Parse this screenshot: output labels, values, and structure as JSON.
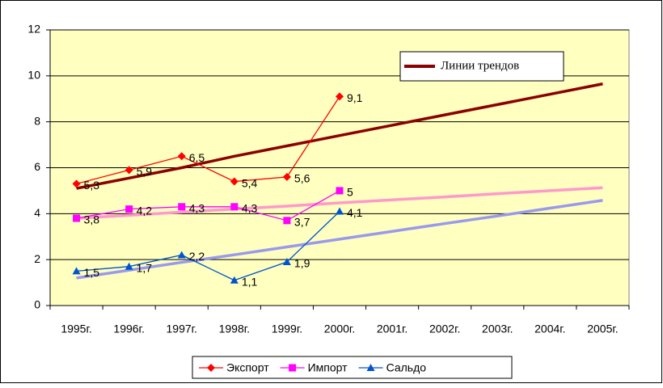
{
  "chart_data": {
    "type": "line",
    "categories": [
      "1995г.",
      "1996г.",
      "1997г.",
      "1998г.",
      "1999г.",
      "2000г.",
      "2001г.",
      "2002г.",
      "2003г.",
      "2004г.",
      "2005г."
    ],
    "series": [
      {
        "name": "Экспорт",
        "color": "#ff0000",
        "marker": "diamond",
        "values": [
          5.3,
          5.9,
          6.5,
          5.4,
          5.6,
          9.1,
          null,
          null,
          null,
          null,
          null
        ],
        "value_labels": [
          "5,3",
          "5,9",
          "6,5",
          "5,4",
          "5,6",
          "9,1",
          null,
          null,
          null,
          null,
          null
        ]
      },
      {
        "name": "Импорт",
        "color": "#ff00ff",
        "marker": "square",
        "values": [
          3.8,
          4.2,
          4.3,
          4.3,
          3.7,
          5,
          null,
          null,
          null,
          null,
          null
        ],
        "value_labels": [
          "3,8",
          "4,2",
          "4,3",
          "4,3",
          "3,7",
          "5",
          null,
          null,
          null,
          null,
          null
        ]
      },
      {
        "name": "Сальдо",
        "color": "#0055cc",
        "marker": "triangle",
        "values": [
          1.5,
          1.7,
          2.2,
          1.1,
          1.9,
          4.1,
          null,
          null,
          null,
          null,
          null
        ],
        "value_labels": [
          "1,5",
          "1,7",
          "2,2",
          "1,1",
          "1,9",
          "4,1",
          null,
          null,
          null,
          null,
          null
        ]
      }
    ],
    "trend_lines": [
      {
        "color": "#8b0000",
        "values": [
          5.1,
          5.55,
          6.0,
          6.5,
          6.95,
          7.4,
          7.85,
          8.3,
          8.75,
          9.2,
          9.65
        ]
      },
      {
        "color": "#ff99cc",
        "values": [
          3.8,
          3.93,
          4.07,
          4.2,
          4.33,
          4.47,
          4.6,
          4.73,
          4.87,
          5.0,
          5.13
        ]
      },
      {
        "color": "#9999ee",
        "values": [
          1.2,
          1.54,
          1.88,
          2.21,
          2.55,
          2.89,
          3.23,
          3.57,
          3.9,
          4.24,
          4.58
        ]
      }
    ],
    "annotation": "Линии трендов",
    "annotation_color": "#8b0000",
    "ylim": [
      0,
      12
    ],
    "yticks": [
      0,
      2,
      4,
      6,
      8,
      10,
      12
    ],
    "grid": true,
    "background": "#ffffc0",
    "legend": "bottom"
  }
}
